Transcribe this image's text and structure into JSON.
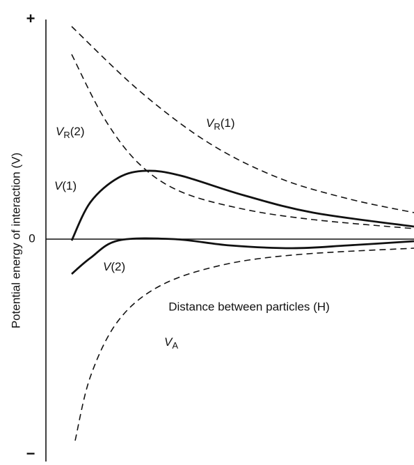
{
  "axes": {
    "plus": "+",
    "minus": "−",
    "zero": "0",
    "y_label": "Potential energy of interaction (V)",
    "x_label": "Distance between particles (H)"
  },
  "curves": [
    {
      "symbol": "V",
      "sub": "R",
      "suffix": "(2)"
    },
    {
      "symbol": "V",
      "sub": "R",
      "suffix": "(1)"
    },
    {
      "symbol": "V",
      "sub": "",
      "suffix": "(1)"
    },
    {
      "symbol": "V",
      "sub": "",
      "suffix": "(2)"
    },
    {
      "symbol": "V",
      "sub": "A",
      "suffix": ""
    }
  ]
}
